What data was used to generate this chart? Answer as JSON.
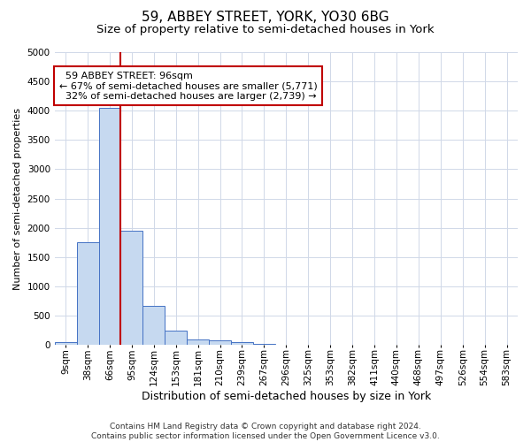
{
  "title": "59, ABBEY STREET, YORK, YO30 6BG",
  "subtitle": "Size of property relative to semi-detached houses in York",
  "xlabel": "Distribution of semi-detached houses by size in York",
  "ylabel": "Number of semi-detached properties",
  "property_label": "59 ABBEY STREET: 96sqm",
  "pct_smaller": 67,
  "count_smaller": 5771,
  "pct_larger": 32,
  "count_larger": 2739,
  "bin_labels": [
    "9sqm",
    "38sqm",
    "66sqm",
    "95sqm",
    "124sqm",
    "153sqm",
    "181sqm",
    "210sqm",
    "239sqm",
    "267sqm",
    "296sqm",
    "325sqm",
    "353sqm",
    "382sqm",
    "411sqm",
    "440sqm",
    "468sqm",
    "497sqm",
    "526sqm",
    "554sqm",
    "583sqm"
  ],
  "bar_values": [
    50,
    1750,
    4050,
    1950,
    670,
    250,
    100,
    80,
    50,
    10,
    5,
    3,
    2,
    1,
    0,
    0,
    0,
    0,
    0,
    0,
    0
  ],
  "bar_color": "#c6d9f0",
  "bar_edge_color": "#4472c4",
  "vline_color": "#c00000",
  "vline_bin_index": 3,
  "ylim": [
    0,
    5000
  ],
  "yticks": [
    0,
    500,
    1000,
    1500,
    2000,
    2500,
    3000,
    3500,
    4000,
    4500,
    5000
  ],
  "annotation_box_color": "#c00000",
  "grid_color": "#d0d8e8",
  "background_color": "#ffffff",
  "footer": "Contains HM Land Registry data © Crown copyright and database right 2024.\nContains public sector information licensed under the Open Government Licence v3.0.",
  "title_fontsize": 11,
  "subtitle_fontsize": 9.5,
  "ylabel_fontsize": 8,
  "xlabel_fontsize": 9,
  "tick_fontsize": 7.5,
  "annot_fontsize": 8,
  "footer_fontsize": 6.5
}
